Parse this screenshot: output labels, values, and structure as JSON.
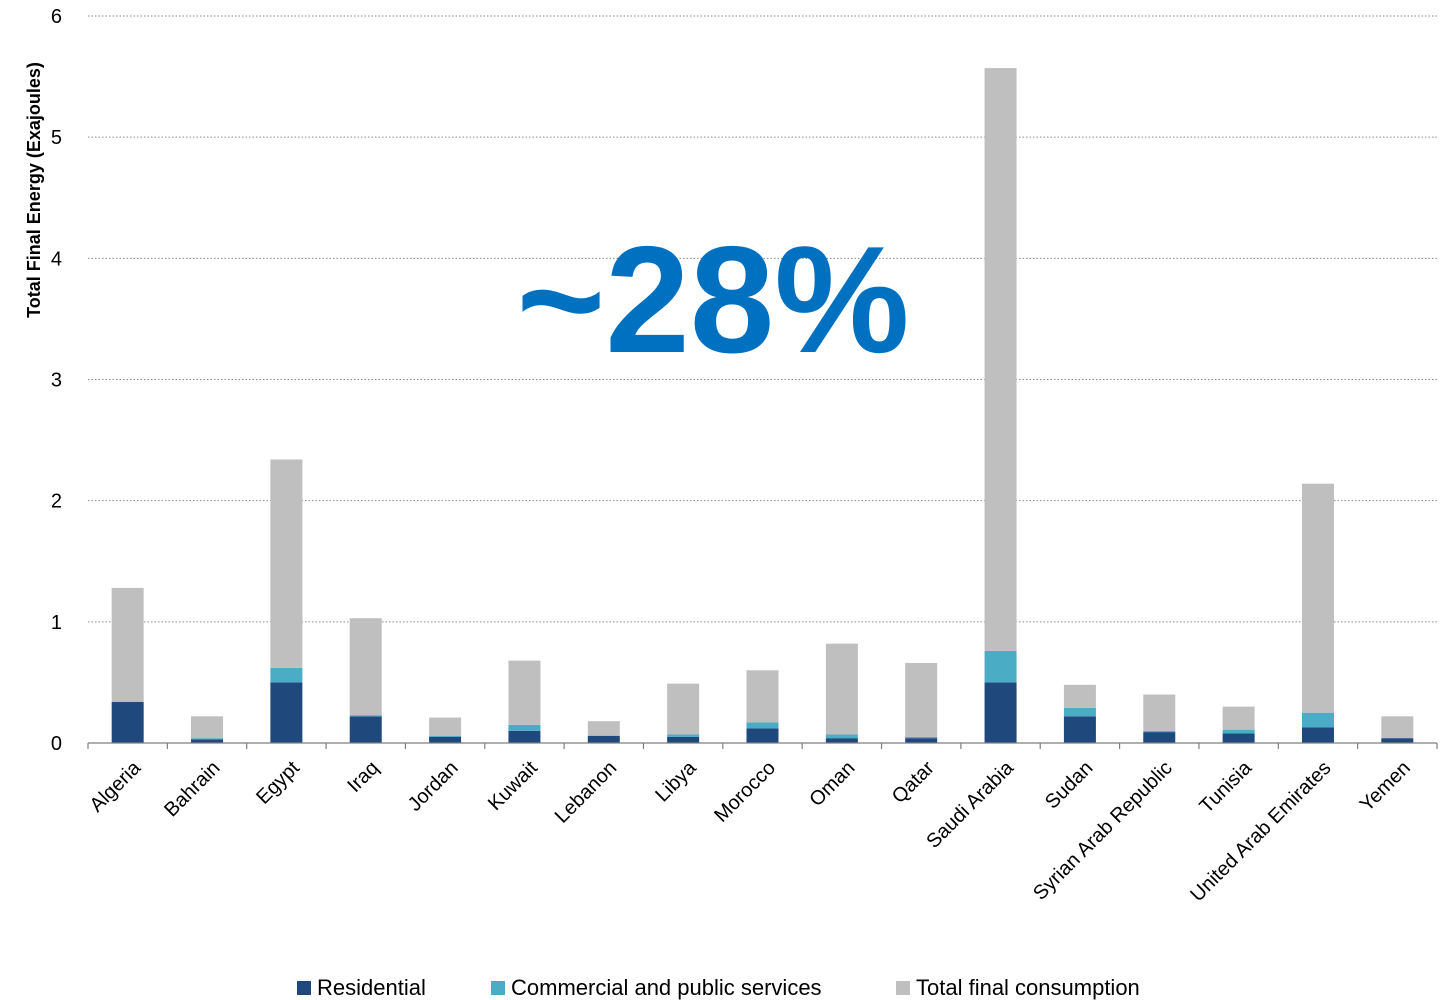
{
  "chart_data": {
    "type": "bar",
    "stacked": true,
    "ylabel": "Total Final Energy (Exajoules)",
    "ylim": [
      0,
      6
    ],
    "yticks": [
      "0",
      "1",
      "2",
      "3",
      "4",
      "5",
      "6"
    ],
    "grid": true,
    "legend_position": "bottom",
    "annotation": "~28%",
    "categories": [
      "Algeria",
      "Bahrain",
      "Egypt",
      "Iraq",
      "Jordan",
      "Kuwait",
      "Lebanon",
      "Libya",
      "Morocco",
      "Oman",
      "Qatar",
      "Saudi Arabia",
      "Sudan",
      "Syrian Arab Republic",
      "Tunisia",
      "United Arab Emirates",
      "Yemen"
    ],
    "series": [
      {
        "name": "Residential",
        "color": "#1f497d",
        "values": [
          0.34,
          0.03,
          0.5,
          0.22,
          0.05,
          0.1,
          0.06,
          0.05,
          0.12,
          0.04,
          0.04,
          0.5,
          0.22,
          0.09,
          0.08,
          0.13,
          0.04
        ]
      },
      {
        "name": "Commercial and public services",
        "color": "#4bacc6",
        "values": [
          0.0,
          0.01,
          0.12,
          0.01,
          0.01,
          0.05,
          0.0,
          0.02,
          0.05,
          0.03,
          0.01,
          0.26,
          0.07,
          0.01,
          0.03,
          0.12,
          0.0
        ]
      },
      {
        "name": "Total final consumption",
        "color": "#bfbfbf",
        "values": [
          0.94,
          0.18,
          1.72,
          0.8,
          0.15,
          0.53,
          0.12,
          0.42,
          0.43,
          0.75,
          0.61,
          4.81,
          0.19,
          0.3,
          0.19,
          1.89,
          0.18
        ]
      }
    ]
  },
  "colors": {
    "annotation": "#0070c0",
    "axis": "#7f7f7f",
    "grid": "#8a8a8a"
  }
}
